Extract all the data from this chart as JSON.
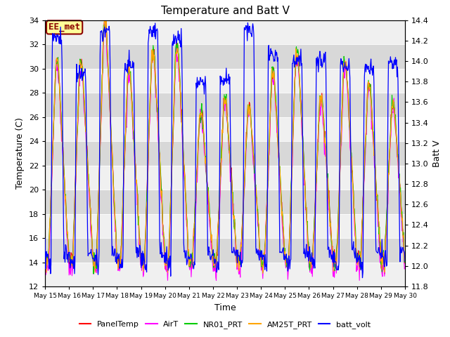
{
  "title": "Temperature and Batt V",
  "xlabel": "Time",
  "ylabel_left": "Temperature (C)",
  "ylabel_right": "Batt V",
  "ylim_left": [
    12,
    34
  ],
  "ylim_right": [
    11.8,
    14.4
  ],
  "yticks_left": [
    12,
    14,
    16,
    18,
    20,
    22,
    24,
    26,
    28,
    30,
    32,
    34
  ],
  "yticks_right": [
    11.8,
    12.0,
    12.2,
    12.4,
    12.6,
    12.8,
    13.0,
    13.2,
    13.4,
    13.6,
    13.8,
    14.0,
    14.2,
    14.4
  ],
  "annotation_text": "EE_met",
  "annotation_fg": "#8B0000",
  "annotation_bg": "#FFFF99",
  "plot_bg_light": "#F0F0F0",
  "plot_bg_dark": "#D8D8D8",
  "fig_bg": "#FFFFFF",
  "colors": {
    "PanelTemp": "#FF0000",
    "AirT": "#FF00FF",
    "NR01_PRT": "#00CC00",
    "AM25T_PRT": "#FFA500",
    "batt_volt": "#0000FF"
  },
  "legend_labels": [
    "PanelTemp",
    "AirT",
    "NR01_PRT",
    "AM25T_PRT",
    "batt_volt"
  ],
  "n_points": 720,
  "n_days": 15
}
